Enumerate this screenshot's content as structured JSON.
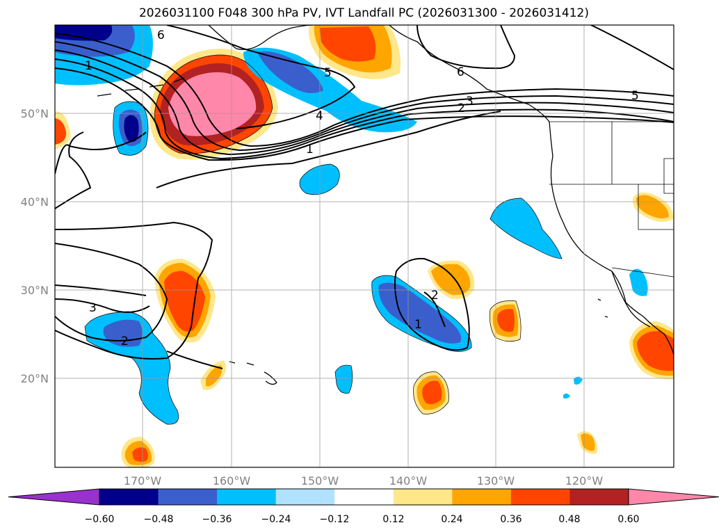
{
  "title": "2026031100 F048 300 hPa PV, IVT Landfall PC (2026031300 - 2026031412)",
  "map": {
    "lon_labels": [
      "170°W",
      "160°W",
      "150°W",
      "140°W",
      "130°W",
      "120°W"
    ],
    "lat_labels": [
      "50°N",
      "40°N",
      "30°N",
      "20°N"
    ],
    "contour_labels": [
      "6",
      "1",
      "5",
      "6",
      "5",
      "3",
      "2",
      "4",
      "1",
      "3",
      "2",
      "2",
      "1"
    ]
  },
  "colorbar": {
    "ticks": [
      "−0.60",
      "−0.48",
      "−0.36",
      "−0.24",
      "−0.12",
      "0.12",
      "0.24",
      "0.36",
      "0.48",
      "0.60"
    ],
    "colors": [
      "#9932cc",
      "#00008b",
      "#3a5fcd",
      "#00bfff",
      "#b0e2ff",
      "#ffffff",
      "#ffe78a",
      "#ffa500",
      "#ff4500",
      "#b22222",
      "#ff88aa"
    ]
  }
}
